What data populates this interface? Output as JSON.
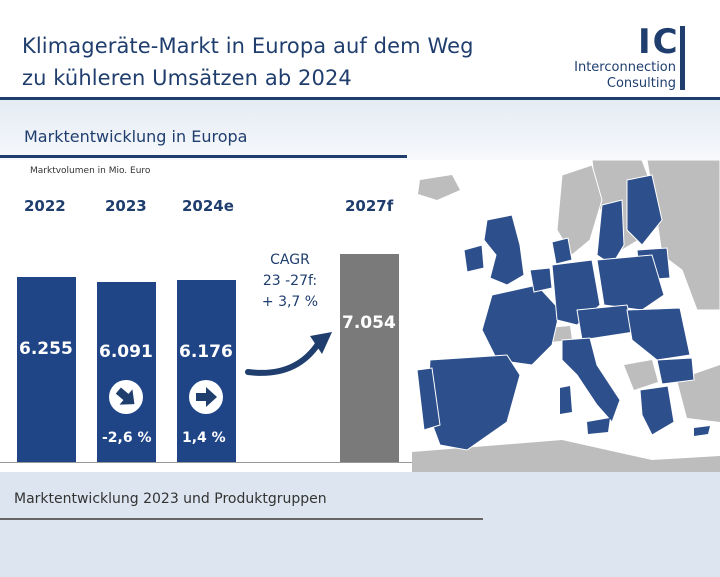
{
  "header": {
    "title_line1": "Klimageräte-Markt in Europa auf dem Weg",
    "title_line2": "zu kühleren Umsätzen ab 2024"
  },
  "logo": {
    "mark": "IC",
    "line1": "Interconnection",
    "line2": "Consulting"
  },
  "section1": {
    "title": "Marktentwicklung  in Europa"
  },
  "section2": {
    "title": "Marktentwicklung  2023 und Produktgruppen"
  },
  "colors": {
    "brand": "#1f3e6e",
    "bar_actual": "#1f4587",
    "bar_forecast": "#7a7a7a",
    "map_highlight": "#2d4f8c",
    "map_other": "#bdbdbd"
  },
  "chart_data": {
    "type": "bar",
    "ylabel": "Marktvolumen  in Mio. Euro",
    "categories": [
      "2022",
      "2023",
      "2024e",
      "2027f"
    ],
    "values": [
      6255,
      6091,
      6176,
      7054
    ],
    "value_labels": [
      "6.255",
      "6.091",
      "6.176",
      "7.054"
    ],
    "changes": [
      {
        "category": "2023",
        "label": "-2,6 %",
        "icon": "arrow-down-right-icon"
      },
      {
        "category": "2024e",
        "label": "1,4 %",
        "icon": "arrow-right-icon"
      }
    ],
    "cagr": {
      "line1": "CAGR",
      "line2": "23 -27f:",
      "line3": "+ 3,7 %"
    }
  }
}
